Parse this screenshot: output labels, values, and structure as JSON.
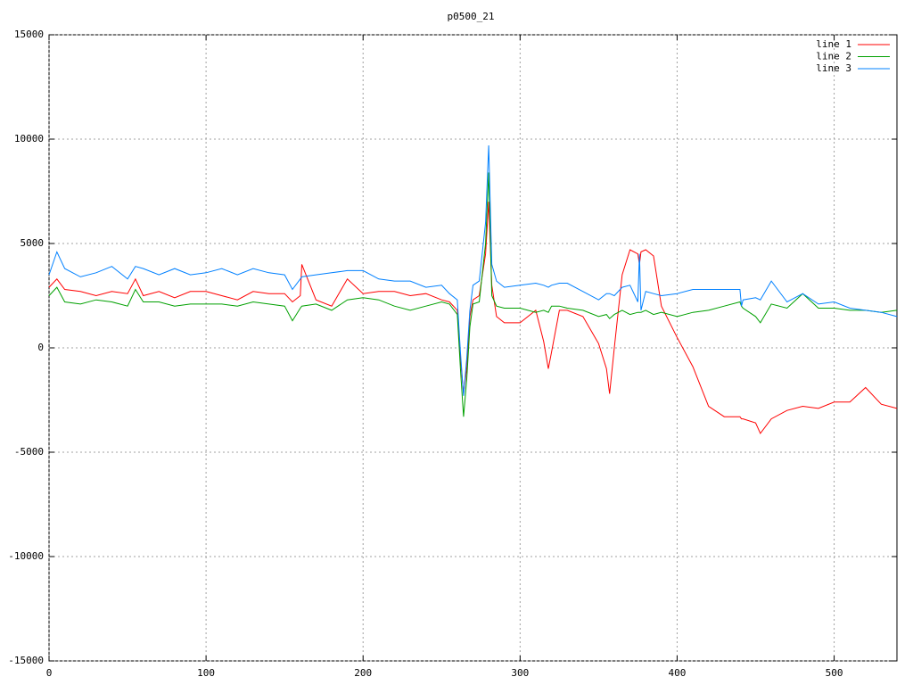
{
  "chart_data": {
    "type": "line",
    "title": "p0500_21",
    "x": [
      0,
      5,
      10,
      20,
      30,
      40,
      50,
      55,
      60,
      70,
      80,
      90,
      100,
      110,
      120,
      130,
      140,
      150,
      155,
      160,
      161,
      170,
      180,
      190,
      200,
      210,
      220,
      230,
      240,
      250,
      255,
      260,
      262,
      264,
      266,
      268,
      270,
      274,
      278,
      280,
      282,
      285,
      290,
      300,
      310,
      315,
      318,
      320,
      325,
      330,
      340,
      350,
      355,
      357,
      360,
      365,
      370,
      375,
      376,
      377,
      380,
      385,
      390,
      400,
      410,
      420,
      430,
      440,
      441,
      442,
      450,
      453,
      460,
      470,
      480,
      490,
      500,
      510,
      520,
      530,
      540
    ],
    "series": [
      {
        "name": "line 1",
        "color": "#ff0000",
        "values": [
          2900,
          3300,
          2800,
          2700,
          2500,
          2700,
          2600,
          3300,
          2500,
          2700,
          2400,
          2700,
          2700,
          2500,
          2300,
          2700,
          2600,
          2600,
          2200,
          2500,
          4000,
          2300,
          2000,
          3300,
          2600,
          2700,
          2700,
          2500,
          2600,
          2300,
          2200,
          1800,
          -500,
          -2200,
          -1000,
          1500,
          2300,
          2500,
          4500,
          7000,
          3000,
          1500,
          1200,
          1200,
          1800,
          300,
          -1000,
          -200,
          1800,
          1800,
          1500,
          200,
          -1000,
          -2200,
          0,
          3500,
          4700,
          4500,
          4000,
          4600,
          4700,
          4400,
          2000,
          500,
          -900,
          -2800,
          -3300,
          -3300,
          -3400,
          -3400,
          -3600,
          -4100,
          -3400,
          -3000,
          -2800,
          -2900,
          -2600,
          -2600,
          -1900,
          -2700,
          -2900
        ]
      },
      {
        "name": "line 2",
        "color": "#00a000",
        "values": [
          2500,
          2900,
          2200,
          2100,
          2300,
          2200,
          2000,
          2800,
          2200,
          2200,
          2000,
          2100,
          2100,
          2100,
          2000,
          2200,
          2100,
          2000,
          1300,
          1900,
          2000,
          2100,
          1800,
          2300,
          2400,
          2300,
          2000,
          1800,
          2000,
          2200,
          2100,
          1600,
          -1000,
          -3300,
          -1500,
          1000,
          2100,
          2200,
          5000,
          8400,
          2500,
          2000,
          1900,
          1900,
          1700,
          1800,
          1700,
          2000,
          2000,
          1900,
          1800,
          1500,
          1600,
          1400,
          1600,
          1800,
          1600,
          1700,
          1700,
          1700,
          1800,
          1600,
          1700,
          1500,
          1700,
          1800,
          2000,
          2200,
          2000,
          1900,
          1500,
          1200,
          2100,
          1900,
          2600,
          1900,
          1900,
          1800,
          1800,
          1700,
          1800
        ]
      },
      {
        "name": "line 3",
        "color": "#0080ff",
        "values": [
          3500,
          4600,
          3800,
          3400,
          3600,
          3900,
          3300,
          3900,
          3800,
          3500,
          3800,
          3500,
          3600,
          3800,
          3500,
          3800,
          3600,
          3500,
          2800,
          3300,
          3400,
          3500,
          3600,
          3700,
          3700,
          3300,
          3200,
          3200,
          2900,
          3000,
          2600,
          2300,
          -200,
          -2300,
          -500,
          1800,
          3000,
          3200,
          6000,
          9700,
          4000,
          3200,
          2900,
          3000,
          3100,
          3000,
          2900,
          3000,
          3100,
          3100,
          2700,
          2300,
          2600,
          2600,
          2500,
          2900,
          3000,
          2200,
          4500,
          1800,
          2700,
          2600,
          2500,
          2600,
          2800,
          2800,
          2800,
          2800,
          2000,
          2300,
          2400,
          2300,
          3200,
          2200,
          2600,
          2100,
          2200,
          1900,
          1800,
          1700,
          1500
        ]
      }
    ],
    "xlim": [
      0,
      540
    ],
    "xticks": [
      0,
      100,
      200,
      300,
      400,
      500
    ],
    "ylim": [
      -15000,
      15000
    ],
    "yticks": [
      -15000,
      -10000,
      -5000,
      0,
      5000,
      10000,
      15000
    ],
    "grid": true,
    "legend": "top-right"
  }
}
